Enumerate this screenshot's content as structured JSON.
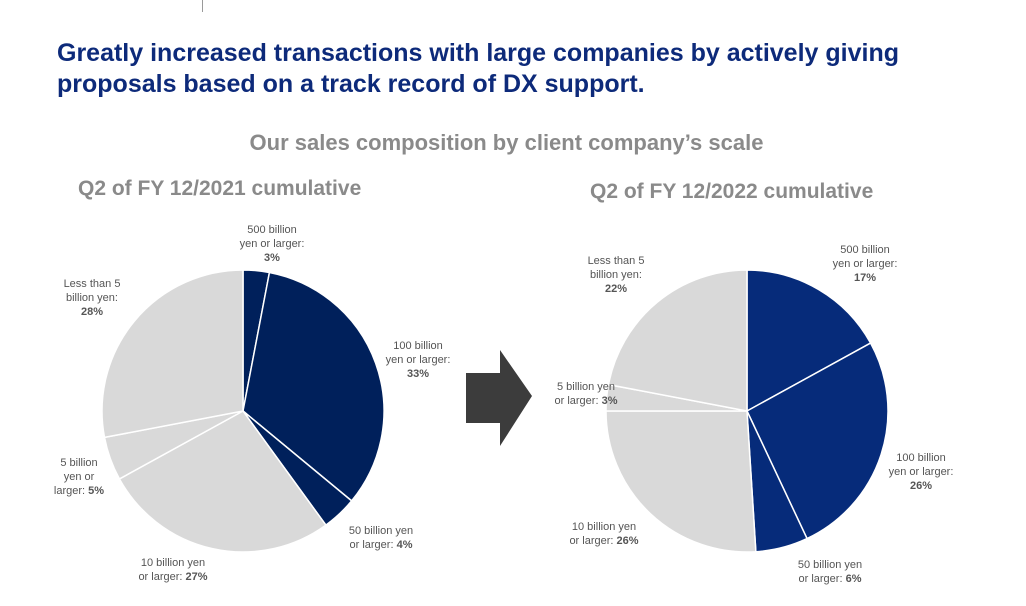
{
  "headline": {
    "line1": "Greatly increased transactions with large companies by actively giving",
    "line2": "proposals based on a track record of DX support."
  },
  "subtitle": "Our sales composition by client company’s scale",
  "colors": {
    "headline": "#0d2a7a",
    "dark_navy": "#00205b",
    "mid_navy": "#062b7a",
    "light_gray": "#d9d9d9",
    "arrow": "#3c3c3c",
    "muted_text": "#8a8a8a"
  },
  "arrow_icon": "right-arrow-icon",
  "chart_data": [
    {
      "type": "pie",
      "title": "Q2 of FY 12/2021 cumulative",
      "slices": [
        {
          "label_lines": [
            "500 billion",
            "yen or larger:"
          ],
          "value_text": "3%",
          "value": 3,
          "color": "#00205b"
        },
        {
          "label_lines": [
            "100 billion",
            "yen or larger:"
          ],
          "value_text": "33%",
          "value": 33,
          "color": "#00205b"
        },
        {
          "label_lines": [
            "50 billion yen",
            "or larger:"
          ],
          "value_text": "4%",
          "value": 4,
          "color": "#00205b"
        },
        {
          "label_lines": [
            "10 billion yen",
            "or larger:"
          ],
          "value_text": "27%",
          "value": 27,
          "color": "#d9d9d9"
        },
        {
          "label_lines": [
            "5 billion",
            "yen or",
            "larger:"
          ],
          "value_text": "5%",
          "value": 5,
          "color": "#d9d9d9"
        },
        {
          "label_lines": [
            "Less than 5",
            "billion yen:"
          ],
          "value_text": "28%",
          "value": 28,
          "color": "#d9d9d9"
        }
      ]
    },
    {
      "type": "pie",
      "title": "Q2 of FY 12/2022 cumulative",
      "slices": [
        {
          "label_lines": [
            "500 billion",
            "yen or larger:"
          ],
          "value_text": "17%",
          "value": 17,
          "color": "#062b7a"
        },
        {
          "label_lines": [
            "100 billion",
            "yen or larger:"
          ],
          "value_text": "26%",
          "value": 26,
          "color": "#062b7a"
        },
        {
          "label_lines": [
            "50 billion yen",
            "or larger:"
          ],
          "value_text": "6%",
          "value": 6,
          "color": "#062b7a"
        },
        {
          "label_lines": [
            "10 billion yen",
            "or larger:"
          ],
          "value_text": "26%",
          "value": 26,
          "color": "#d9d9d9"
        },
        {
          "label_lines": [
            "5 billion yen",
            "or larger:"
          ],
          "value_text": "3%",
          "value": 3,
          "color": "#d9d9d9"
        },
        {
          "label_lines": [
            "Less than 5",
            "billion yen:"
          ],
          "value_text": "22%",
          "value": 22,
          "color": "#d9d9d9"
        }
      ]
    }
  ]
}
